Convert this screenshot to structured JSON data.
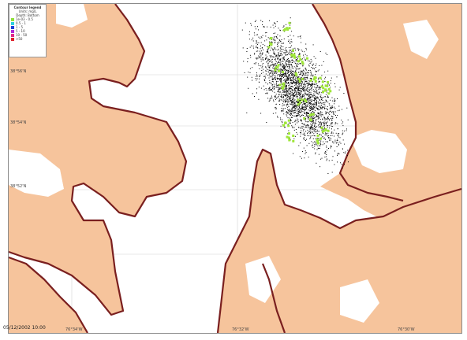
{
  "legend": {
    "title": "Contour legend",
    "units": "Units: mg/L",
    "depth": "Depth: Bottom",
    "items": [
      {
        "label": "1e-03 - 0.5",
        "color": "#8fe23a"
      },
      {
        "label": "0.5 - 1",
        "color": "#2dd0e0"
      },
      {
        "label": "1 - 5",
        "color": "#1a3fd8"
      },
      {
        "label": "5 - 10",
        "color": "#b02ad8"
      },
      {
        "label": "10 - 50",
        "color": "#e02a8a"
      },
      {
        "label": ">50",
        "color": "#e0202a"
      }
    ]
  },
  "lat_labels": [
    "38°56'N",
    "38°54'N",
    "38°52'N"
  ],
  "lon_labels": [
    "76°34'W",
    "76°32'W",
    "76°30'W"
  ],
  "timestamp": "05/12/2002 10:00",
  "colors": {
    "land": "#f6c49c",
    "shore": "#7a1f1f",
    "particles": "#000000",
    "contour": "#9fe63a",
    "grid": "#cfcfcf"
  }
}
